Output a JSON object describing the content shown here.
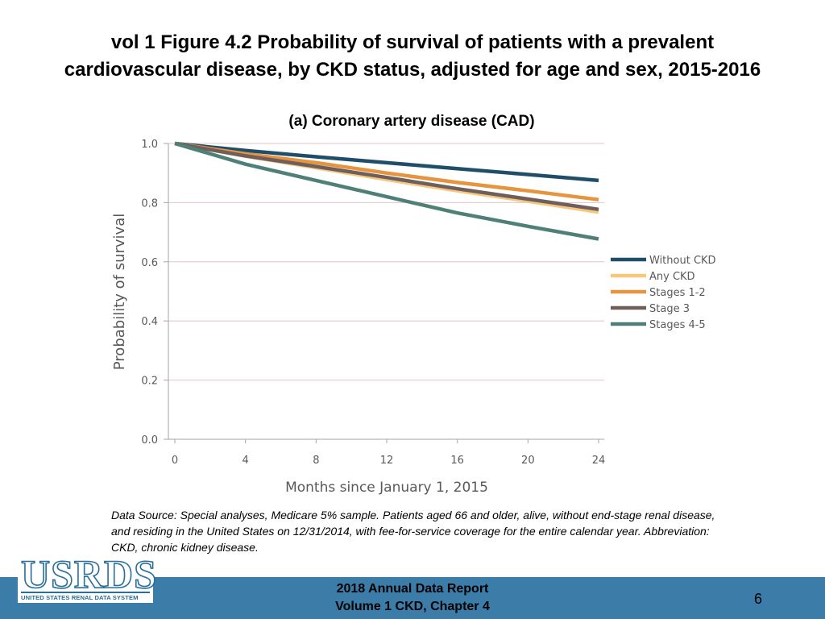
{
  "slide": {
    "title_line1": "vol 1 Figure 4.2 Probability of survival of patients with a prevalent",
    "title_line2": "cardiovascular disease, by CKD status, adjusted for age and sex, 2015-2016",
    "footnote": "Data Source: Special analyses, Medicare 5% sample. Patients aged 66 and older, alive, without end-stage renal disease, and residing in the United States on 12/31/2014, with fee-for-service coverage for the entire calendar year. Abbreviation: CKD, chronic kidney disease.",
    "footer_line1": "2018 Annual Data Report",
    "footer_line2": "Volume 1 CKD, Chapter 4",
    "page_number": "6",
    "logo_text": "USRDS",
    "logo_tagline": "UNITED STATES RENAL DATA SYSTEM",
    "footer_color": "#3b7ca8"
  },
  "chart_data": {
    "type": "line",
    "title": "(a) Coronary artery disease (CAD)",
    "xlabel": "Months since January 1, 2015",
    "ylabel": "Probability of survival",
    "xlim": [
      0,
      24
    ],
    "ylim": [
      0,
      1.0
    ],
    "xticks": [
      0,
      4,
      8,
      12,
      16,
      20,
      24
    ],
    "yticks": [
      0.0,
      0.2,
      0.4,
      0.6,
      0.8,
      1.0
    ],
    "ytick_labels": [
      "0.0",
      "0.2",
      "0.4",
      "0.6",
      "0.8",
      "1.0"
    ],
    "grid": "horizontal",
    "legend_position": "right",
    "x": [
      0,
      4,
      8,
      12,
      16,
      20,
      24
    ],
    "series": [
      {
        "name": "Without CKD",
        "color": "#1f4e6b",
        "values": [
          1.0,
          0.976,
          0.955,
          0.935,
          0.915,
          0.895,
          0.875
        ]
      },
      {
        "name": "Any CKD",
        "color": "#f7c77e",
        "values": [
          1.0,
          0.957,
          0.918,
          0.878,
          0.84,
          0.805,
          0.768
        ]
      },
      {
        "name": "Stages 1-2",
        "color": "#e6943e",
        "values": [
          1.0,
          0.965,
          0.935,
          0.9,
          0.868,
          0.84,
          0.81
        ]
      },
      {
        "name": "Stage 3",
        "color": "#6e5f5d",
        "values": [
          1.0,
          0.958,
          0.922,
          0.885,
          0.847,
          0.812,
          0.777
        ]
      },
      {
        "name": "Stages 4-5",
        "color": "#4e8077",
        "values": [
          1.0,
          0.93,
          0.875,
          0.82,
          0.765,
          0.72,
          0.677
        ]
      }
    ]
  }
}
